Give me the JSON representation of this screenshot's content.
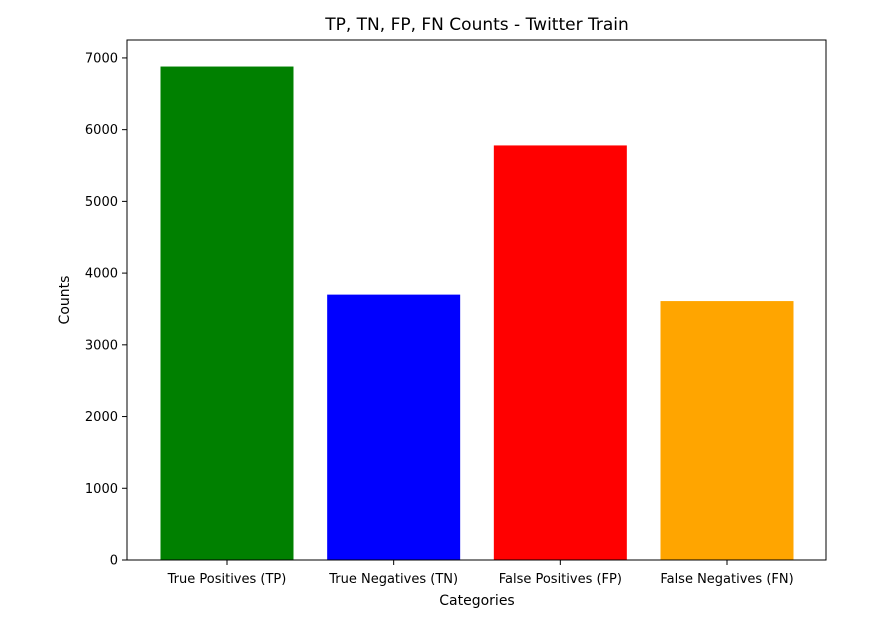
{
  "chart_data": {
    "type": "bar",
    "title": "TP, TN, FP, FN Counts - Twitter Train",
    "xlabel": "Categories",
    "ylabel": "Counts",
    "categories": [
      "True Positives (TP)",
      "True Negatives (TN)",
      "False Positives (FP)",
      "False Negatives (FN)"
    ],
    "values": [
      6880,
      3700,
      5780,
      3610
    ],
    "colors": [
      "#008000",
      "#0000ff",
      "#ff0000",
      "#ffa500"
    ],
    "ylim": [
      0,
      7250
    ],
    "yticks": [
      0,
      1000,
      2000,
      3000,
      4000,
      5000,
      6000,
      7000
    ],
    "ytick_labels": [
      "0",
      "1000",
      "2000",
      "3000",
      "4000",
      "5000",
      "6000",
      "7000"
    ],
    "grid": false,
    "legend": "none"
  }
}
